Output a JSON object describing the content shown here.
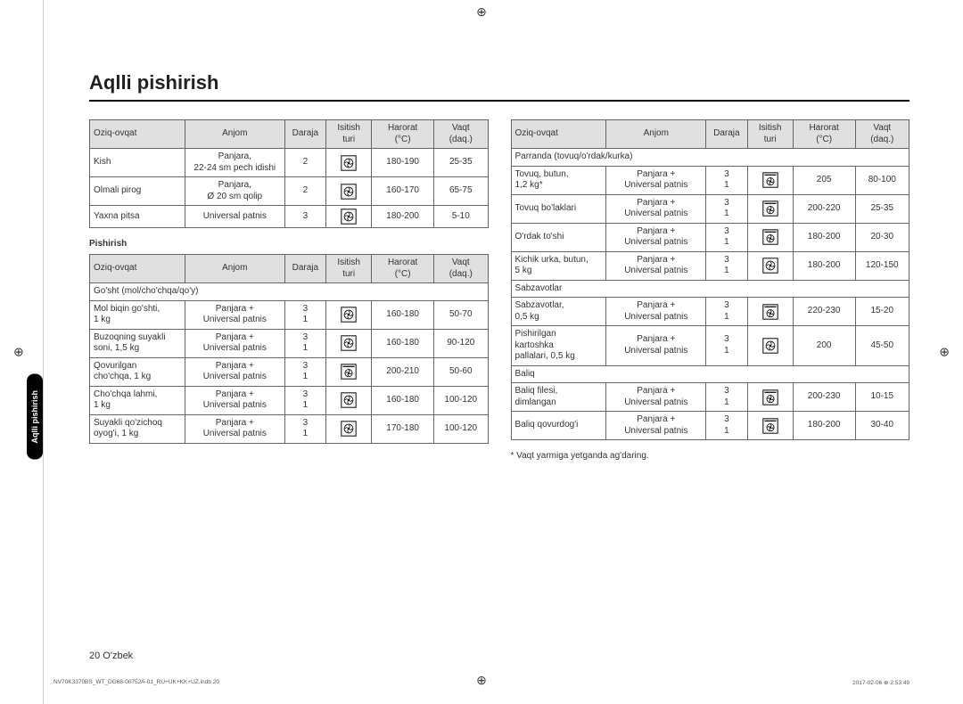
{
  "title": "Aqlli pishirish",
  "sideTab": "Aqlli pishirish",
  "pageFooter": "20  O'zbek",
  "tinyFooterLeft": "NV70K3370BS_WT_DG68-00752A-01_RU+UK+KK+UZ.indb   20",
  "tinyFooterRight": "2017-02-06   ⊕ 2:53:49",
  "footnote": "* Vaqt yarmiga yetganda ag'daring.",
  "headers": {
    "food": "Oziq-ovqat",
    "anjom": "Anjom",
    "daraja": "Daraja",
    "isitish1": "Isitish",
    "isitish2": "turi",
    "harorat1": "Harorat",
    "harorat2": "(°C)",
    "vaqt1": "Vaqt",
    "vaqt2": "(daq.)"
  },
  "subhead_pishirish": "Pishirish",
  "icons": {
    "fan": "fan",
    "fanTop": "fanTop"
  },
  "leftTable1": [
    {
      "food": "Kish",
      "anjom": "Panjara,\n22-24 sm pech idishi",
      "daraja": "2",
      "icon": "fan",
      "harorat": "180-190",
      "vaqt": "25-35"
    },
    {
      "food": "Olmali pirog",
      "anjom": "Panjara,\nØ 20 sm qolip",
      "daraja": "2",
      "icon": "fan",
      "harorat": "160-170",
      "vaqt": "65-75"
    },
    {
      "food": "Yaxna pitsa",
      "anjom": "Universal patnis",
      "daraja": "3",
      "icon": "fan",
      "harorat": "180-200",
      "vaqt": "5-10"
    }
  ],
  "leftSections": [
    {
      "section": "Go'sht (mol/cho'chqa/qo'y)"
    },
    {
      "food": "Mol biqin go'shti,\n1 kg",
      "anjom": "Panjara +\nUniversal patnis",
      "daraja": "3\n1",
      "icon": "fan",
      "harorat": "160-180",
      "vaqt": "50-70"
    },
    {
      "food": "Buzoqning suyakli\nsoni, 1,5 kg",
      "anjom": "Panjara +\nUniversal patnis",
      "daraja": "3\n1",
      "icon": "fan",
      "harorat": "160-180",
      "vaqt": "90-120"
    },
    {
      "food": "Qovurilgan\ncho'chqa, 1 kg",
      "anjom": "Panjara +\nUniversal patnis",
      "daraja": "3\n1",
      "icon": "fanTop",
      "harorat": "200-210",
      "vaqt": "50-60"
    },
    {
      "food": "Cho'chqa lahmi,\n1 kg",
      "anjom": "Panjara +\nUniversal patnis",
      "daraja": "3\n1",
      "icon": "fan",
      "harorat": "160-180",
      "vaqt": "100-120"
    },
    {
      "food": "Suyakli qo'zichoq\noyog'i, 1 kg",
      "anjom": "Panjara +\nUniversal patnis",
      "daraja": "3\n1",
      "icon": "fan",
      "harorat": "170-180",
      "vaqt": "100-120"
    }
  ],
  "rightSections": [
    {
      "section": "Parranda (tovuq/o'rdak/kurka)"
    },
    {
      "food": "Tovuq, butun,\n1,2 kg*",
      "anjom": "Panjara +\nUniversal patnis",
      "daraja": "3\n1",
      "icon": "fanTop",
      "harorat": "205",
      "vaqt": "80-100"
    },
    {
      "food": "Tovuq bo'laklari",
      "anjom": "Panjara +\nUniversal patnis",
      "daraja": "3\n1",
      "icon": "fanTop",
      "harorat": "200-220",
      "vaqt": "25-35"
    },
    {
      "food": "O'rdak to'shi",
      "anjom": "Panjara +\nUniversal patnis",
      "daraja": "3\n1",
      "icon": "fanTop",
      "harorat": "180-200",
      "vaqt": "20-30"
    },
    {
      "food": "Kichik urka, butun,\n5 kg",
      "anjom": "Panjara +\nUniversal patnis",
      "daraja": "3\n1",
      "icon": "fan",
      "harorat": "180-200",
      "vaqt": "120-150"
    },
    {
      "section": "Sabzavotlar"
    },
    {
      "food": "Sabzavotlar,\n0,5 kg",
      "anjom": "Panjara +\nUniversal patnis",
      "daraja": "3\n1",
      "icon": "fanTop",
      "harorat": "220-230",
      "vaqt": "15-20"
    },
    {
      "food": "Pishirilgan\nkartoshka\npallalari, 0,5 kg",
      "anjom": "Panjara +\nUniversal patnis",
      "daraja": "3\n1",
      "icon": "fan",
      "harorat": "200",
      "vaqt": "45-50"
    },
    {
      "section": "Baliq"
    },
    {
      "food": "Baliq filesi,\ndimlangan",
      "anjom": "Panjara +\nUniversal patnis",
      "daraja": "3\n1",
      "icon": "fanTop",
      "harorat": "200-230",
      "vaqt": "10-15"
    },
    {
      "food": "Baliq qovurdog'i",
      "anjom": "Panjara +\nUniversal patnis",
      "daraja": "3\n1",
      "icon": "fanTop",
      "harorat": "180-200",
      "vaqt": "30-40"
    }
  ]
}
